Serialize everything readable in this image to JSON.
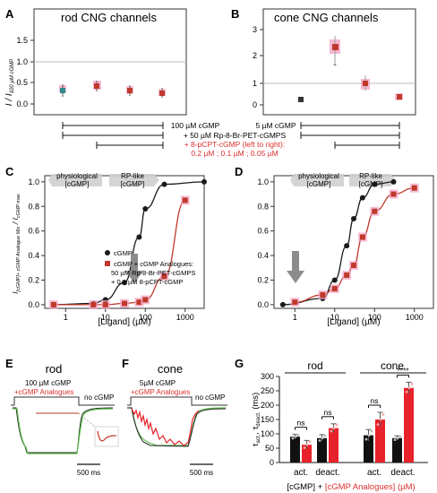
{
  "colors": {
    "black": "#1a1a1a",
    "red": "#c0392b",
    "red_text": "#d9302c",
    "pink": "#f4a6c8",
    "grey": "#888888",
    "teal": "#2e8b8b",
    "green": "#5cc04a",
    "bar_red": "#e8222a",
    "bar_black": "#111111",
    "arrow_grey": "#8c8c8c"
  },
  "panels": {
    "A": {
      "letter": "A",
      "title": "rod CNG channels"
    },
    "B": {
      "letter": "B",
      "title": "cone CNG channels"
    },
    "C": {
      "letter": "C"
    },
    "D": {
      "letter": "D"
    },
    "E": {
      "letter": "E",
      "title": "rod",
      "cgmp_label": "100 µM cGMP",
      "analogue_label": "+cGMP Analogues",
      "nocgmp_label": "no cGMP",
      "scale_label": "500 ms"
    },
    "F": {
      "letter": "F",
      "title": "cone",
      "cgmp_label": "5µM cGMP",
      "analogue_label": "+cGMP Analogues",
      "nocgmp_label": "no cGMP",
      "scale_label": "500 ms"
    },
    "G": {
      "letter": "G",
      "rod_label": "rod",
      "cone_label": "cone"
    }
  },
  "conditions": {
    "line1": "100 µM cGMP",
    "line1_cone": "5 µM cGMP",
    "line2": "+ 50 µM Rp-8-Br-PET-cGMPS",
    "line3": "+ 8-pCPT-cGMP (left to right):",
    "line4": "0.2 µM ; 0.1 µM ; 0.05 µM"
  },
  "legend_C": {
    "cgmp": "cGMP",
    "analogues_1": "cGMP + cGMP Analogues:",
    "analogues_2": "50 µM Rp-8-Br-PET-cGMPS",
    "analogues_3": "+ 0.1 µM 8-pCPT-cGMP"
  },
  "annotations": {
    "physiological_1": "physiological",
    "physiological_2": "[cGMP]",
    "rplike_1": "RP-like",
    "rplike_2": "[cGMP]"
  },
  "chart_data": [
    {
      "id": "A",
      "type": "scatter",
      "title": "rod CNG channels",
      "ylabel": "I / I100 µM cGMP",
      "ylim": [
        -0.1,
        1.6
      ],
      "yticks": [
        "0.0",
        "0.5",
        "1.0",
        "1.5"
      ],
      "reference_line": 1.0,
      "series": [
        {
          "x": [
            1,
            2,
            3,
            4
          ],
          "y": [
            0.3,
            0.42,
            0.32,
            0.26
          ],
          "err": [
            0.08,
            0.06,
            0.07,
            0.06
          ],
          "marker_colors": [
            "#2e8b8b",
            "#c0392b",
            "#c0392b",
            "#c0392b"
          ]
        }
      ]
    },
    {
      "id": "B",
      "type": "scatter",
      "title": "cone CNG channels",
      "ylim": [
        -0.1,
        3.4
      ],
      "yticks": [
        "0",
        "1",
        "2",
        "3"
      ],
      "reference_line": 1.0,
      "series": [
        {
          "x": [
            1,
            2,
            3,
            4
          ],
          "y": [
            0.25,
            2.65,
            1.0,
            0.35
          ],
          "err": [
            0.05,
            0.2,
            0.12,
            0.06
          ],
          "marker_colors": [
            "#333333",
            "#c0392b",
            "#c0392b",
            "#c0392b"
          ]
        }
      ]
    },
    {
      "id": "C",
      "type": "line",
      "xlabel": "[Ligand] (µM)",
      "ylabel": "I[cGMP]+cGMP Analogue Mix / IcGMP max",
      "xscale": "log",
      "xlim": [
        0.3,
        3000
      ],
      "ylim": [
        -0.03,
        1.05
      ],
      "xticks": [
        "1",
        "10",
        "100",
        "1000"
      ],
      "yticks": [
        "0.0",
        "0.2",
        "0.4",
        "0.6",
        "0.8",
        "1.0"
      ],
      "series": [
        {
          "name": "cGMP",
          "color": "#1a1a1a",
          "x": [
            0.5,
            5,
            10,
            30,
            70,
            100,
            300,
            3000
          ],
          "y": [
            0.0,
            0.01,
            0.04,
            0.18,
            0.55,
            0.78,
            0.98,
            1.0
          ]
        },
        {
          "name": "cGMP + cGMP Analogues",
          "color": "#c0392b",
          "x": [
            0.5,
            5,
            10,
            30,
            70,
            100,
            300,
            1000
          ],
          "y": [
            0.0,
            0.0,
            0.0,
            0.01,
            0.02,
            0.04,
            0.23,
            0.85
          ]
        }
      ]
    },
    {
      "id": "D",
      "type": "line",
      "xlabel": "[Ligand] (µM)",
      "xscale": "log",
      "xlim": [
        0.3,
        3000
      ],
      "ylim": [
        -0.03,
        1.05
      ],
      "xticks": [
        "1",
        "10",
        "100",
        "1000"
      ],
      "yticks": [
        "0.0",
        "0.2",
        "0.4",
        "0.6",
        "0.8",
        "1.0"
      ],
      "series": [
        {
          "name": "cGMP",
          "color": "#1a1a1a",
          "x": [
            0.5,
            5,
            10,
            20,
            30,
            50,
            100,
            300
          ],
          "y": [
            0.0,
            0.05,
            0.2,
            0.48,
            0.7,
            0.87,
            0.98,
            1.0
          ]
        },
        {
          "name": "cGMP + cGMP Analogues",
          "color": "#c0392b",
          "x": [
            1,
            5,
            10,
            20,
            30,
            50,
            100,
            300,
            1000
          ],
          "y": [
            0.02,
            0.08,
            0.13,
            0.24,
            0.32,
            0.55,
            0.76,
            0.9,
            0.95
          ]
        }
      ]
    },
    {
      "id": "G",
      "type": "bar",
      "ylabel": "τact., τdeact. (ms)",
      "ylim": [
        0,
        300
      ],
      "yticks": [
        "0",
        "50",
        "100",
        "150",
        "200",
        "250",
        "300"
      ],
      "categories": [
        "act.",
        "deact.",
        "act.",
        "deact."
      ],
      "groups": [
        "rod",
        "rod",
        "cone",
        "cone"
      ],
      "xlabel_1": "[cGMP] + ",
      "xlabel_2": "[cGMP Analogues] (µM)",
      "series": [
        {
          "name": "[cGMP]",
          "color": "#111111",
          "values": [
            90,
            85,
            95,
            85
          ],
          "err": [
            8,
            12,
            20,
            8
          ]
        },
        {
          "name": "[cGMP Analogues]",
          "color": "#e8222a",
          "values": [
            62,
            120,
            150,
            260
          ],
          "err": [
            15,
            15,
            25,
            20
          ]
        }
      ],
      "significance": [
        "ns",
        "ns",
        "ns",
        "****"
      ]
    }
  ]
}
